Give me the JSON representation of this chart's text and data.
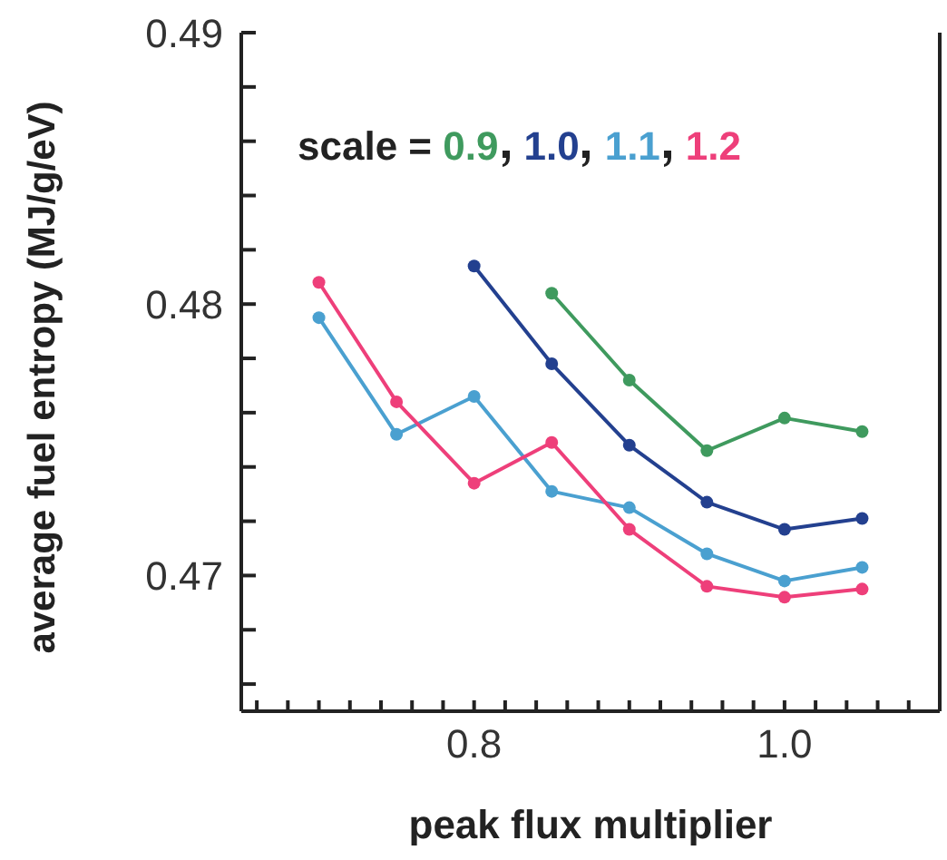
{
  "chart_data": {
    "type": "line",
    "xlabel": "peak flux multiplier",
    "ylabel": "average fuel entropy (MJ/g/eV)",
    "legend_title": "scale =",
    "legend": "top",
    "marker": "circle",
    "line_style": "solid",
    "grid": false,
    "xlim": [
      0.65,
      1.1
    ],
    "xticks": [
      {
        "value": 0.66,
        "label": null
      },
      {
        "value": 0.68,
        "label": null
      },
      {
        "value": 0.7,
        "label": null
      },
      {
        "value": 0.72,
        "label": null
      },
      {
        "value": 0.74,
        "label": null
      },
      {
        "value": 0.76,
        "label": null
      },
      {
        "value": 0.78,
        "label": null
      },
      {
        "value": 0.8,
        "label": "0.8"
      },
      {
        "value": 0.82,
        "label": null
      },
      {
        "value": 0.84,
        "label": null
      },
      {
        "value": 0.86,
        "label": null
      },
      {
        "value": 0.88,
        "label": null
      },
      {
        "value": 0.9,
        "label": null
      },
      {
        "value": 0.92,
        "label": null
      },
      {
        "value": 0.94,
        "label": null
      },
      {
        "value": 0.96,
        "label": null
      },
      {
        "value": 0.98,
        "label": null
      },
      {
        "value": 1.0,
        "label": "1.0"
      },
      {
        "value": 1.02,
        "label": null
      },
      {
        "value": 1.04,
        "label": null
      },
      {
        "value": 1.06,
        "label": null
      },
      {
        "value": 1.08,
        "label": null
      }
    ],
    "ylim": [
      0.465,
      0.49
    ],
    "yticks": [
      {
        "value": 0.466,
        "label": null
      },
      {
        "value": 0.468,
        "label": null
      },
      0.47,
      {
        "value": 0.472,
        "label": null
      },
      {
        "value": 0.474,
        "label": null
      },
      {
        "value": 0.476,
        "label": null
      },
      {
        "value": 0.478,
        "label": null
      },
      0.48,
      {
        "value": 0.482,
        "label": null
      },
      {
        "value": 0.484,
        "label": null
      },
      {
        "value": 0.486,
        "label": null
      },
      {
        "value": 0.488,
        "label": null
      },
      0.49
    ],
    "series": [
      {
        "name": "0.9",
        "color": "#3f9a5e",
        "x": [
          0.85,
          0.9,
          0.95,
          1.0,
          1.05
        ],
        "values": [
          0.4804,
          0.4772,
          0.4746,
          0.4758,
          0.4753
        ]
      },
      {
        "name": "1.0",
        "color": "#23408f",
        "x": [
          0.8,
          0.85,
          0.9,
          0.95,
          1.0,
          1.05
        ],
        "values": [
          0.4814,
          0.4778,
          0.4748,
          0.4727,
          0.4717,
          0.4721
        ]
      },
      {
        "name": "1.1",
        "color": "#4aa0d0",
        "x": [
          0.7,
          0.75,
          0.8,
          0.85,
          0.9,
          0.95,
          1.0,
          1.05
        ],
        "values": [
          0.4795,
          0.4752,
          0.4766,
          0.4731,
          0.4725,
          0.4708,
          0.4698,
          0.4703
        ]
      },
      {
        "name": "1.2",
        "color": "#ee3f7a",
        "x": [
          0.7,
          0.75,
          0.8,
          0.85,
          0.9,
          0.95,
          1.0,
          1.05
        ],
        "values": [
          0.4808,
          0.4764,
          0.4734,
          0.4749,
          0.4717,
          0.4696,
          0.4692,
          0.4695
        ]
      }
    ]
  }
}
